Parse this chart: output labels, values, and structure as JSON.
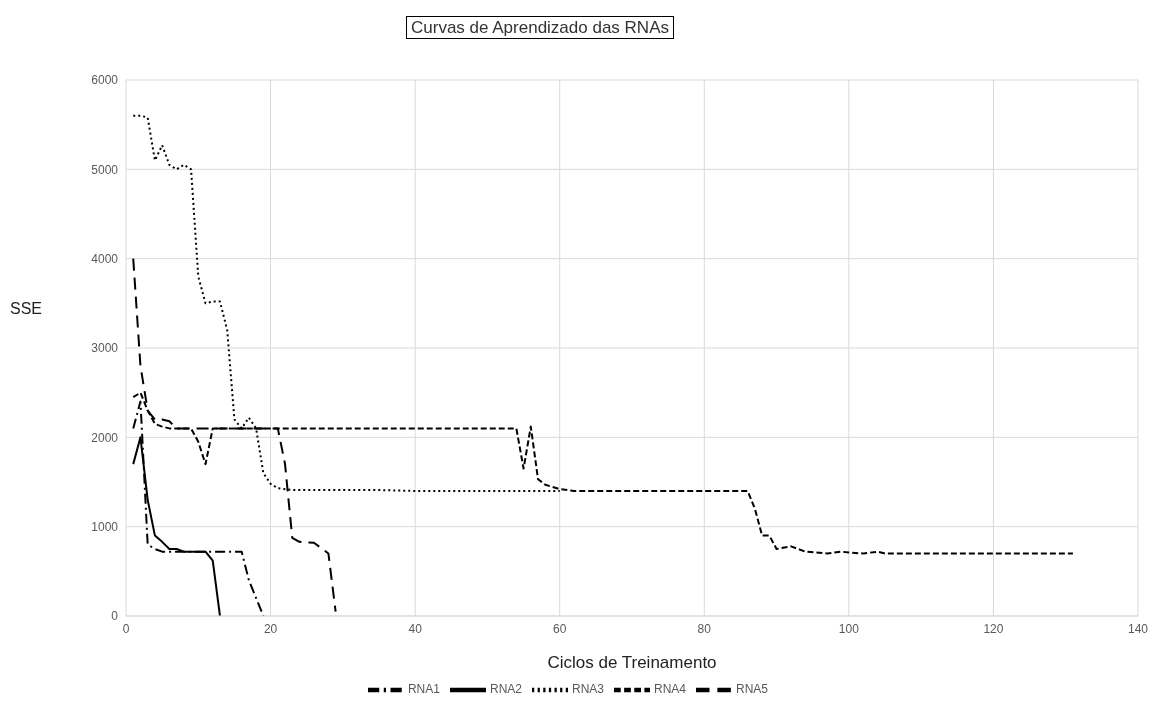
{
  "chart_data": {
    "type": "line",
    "title": "Curvas de Aprendizado das RNAs",
    "xlabel": "Ciclos de Treinamento",
    "ylabel": "SSE",
    "xlim": [
      0,
      140
    ],
    "xticks": [
      0,
      20,
      40,
      60,
      80,
      100,
      120,
      140
    ],
    "ylim": [
      0,
      6000
    ],
    "yticks": [
      0,
      1000,
      2000,
      3000,
      4000,
      5000,
      6000
    ],
    "grid": true,
    "legend": "bottom",
    "marker": "none",
    "series": [
      {
        "name": "RNA1",
        "color": "#000000",
        "line_style": "dashdot",
        "x": [
          1,
          2,
          3,
          4,
          5,
          6,
          8,
          10,
          12,
          14,
          16,
          17,
          18,
          19
        ],
        "values": [
          2100,
          2400,
          800,
          750,
          720,
          720,
          720,
          720,
          720,
          720,
          720,
          400,
          200,
          0
        ]
      },
      {
        "name": "RNA2",
        "color": "#000000",
        "line_style": "solid",
        "x": [
          1,
          2,
          3,
          4,
          5,
          6,
          7,
          8,
          9,
          10,
          11,
          12,
          13
        ],
        "values": [
          1700,
          2000,
          1300,
          900,
          830,
          750,
          750,
          720,
          720,
          720,
          720,
          620,
          0
        ]
      },
      {
        "name": "RNA3",
        "color": "#000000",
        "line_style": "dotted",
        "x": [
          1,
          2,
          3,
          4,
          5,
          6,
          7,
          8,
          9,
          10,
          11,
          12,
          13,
          14,
          15,
          16,
          17,
          18,
          19,
          20,
          21,
          22,
          23,
          30,
          35,
          40,
          50,
          60
        ],
        "values": [
          5600,
          5600,
          5580,
          5100,
          5270,
          5050,
          5000,
          5050,
          5000,
          3800,
          3500,
          3520,
          3520,
          3200,
          2200,
          2100,
          2220,
          2100,
          1600,
          1480,
          1430,
          1420,
          1410,
          1410,
          1410,
          1400,
          1400,
          1400
        ]
      },
      {
        "name": "RNA4",
        "color": "#000000",
        "line_style": "dashed",
        "x": [
          1,
          2,
          3,
          4,
          5,
          6,
          9,
          10,
          11,
          12,
          20,
          30,
          40,
          54,
          55,
          56,
          57,
          58,
          60,
          62,
          70,
          80,
          86,
          87,
          88,
          89,
          90,
          92,
          94,
          97,
          99,
          100,
          102,
          104,
          105,
          120,
          131
        ],
        "values": [
          2450,
          2500,
          2300,
          2150,
          2120,
          2100,
          2100,
          1950,
          1700,
          2100,
          2100,
          2100,
          2100,
          2100,
          1650,
          2120,
          1530,
          1470,
          1420,
          1400,
          1400,
          1400,
          1400,
          1200,
          900,
          900,
          750,
          780,
          720,
          700,
          720,
          710,
          700,
          720,
          700,
          700,
          700
        ]
      },
      {
        "name": "RNA5",
        "color": "#000000",
        "line_style": "longdash",
        "x": [
          1,
          2,
          3,
          4,
          5,
          6,
          7,
          10,
          15,
          20,
          21,
          22,
          23,
          24,
          26,
          28,
          29
        ],
        "values": [
          4000,
          2800,
          2300,
          2200,
          2200,
          2180,
          2100,
          2100,
          2100,
          2100,
          2100,
          1700,
          875,
          830,
          820,
          700,
          50
        ]
      }
    ]
  }
}
